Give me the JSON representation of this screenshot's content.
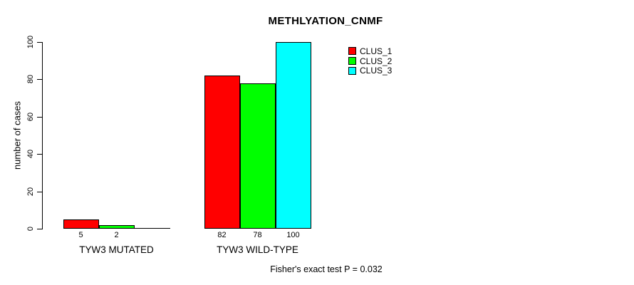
{
  "page": {
    "background_color": "#ffffff",
    "text_color": "#000000",
    "axis_color": "#000000"
  },
  "chart_data": {
    "type": "bar",
    "title": "METHLYATION_CNMF",
    "ylabel": "number of cases",
    "xlabel": "",
    "ylim": [
      0,
      100
    ],
    "yticks": [
      0,
      20,
      40,
      60,
      80,
      100
    ],
    "grid": false,
    "categories": [
      "TYW3 MUTATED",
      "TYW3 WILD-TYPE"
    ],
    "series": [
      {
        "name": "CLUS_1",
        "color": "#ff0000",
        "values": [
          5,
          82
        ]
      },
      {
        "name": "CLUS_2",
        "color": "#00ff00",
        "values": [
          2,
          78
        ]
      },
      {
        "name": "CLUS_3",
        "color": "#00ffff",
        "values": [
          0,
          100
        ]
      }
    ],
    "bar_value_labels": [
      [
        "5",
        "2",
        ""
      ],
      [
        "82",
        "78",
        "100"
      ]
    ],
    "legend_position": "top-right",
    "annotation": "Fisher's exact test P = 0.032"
  }
}
